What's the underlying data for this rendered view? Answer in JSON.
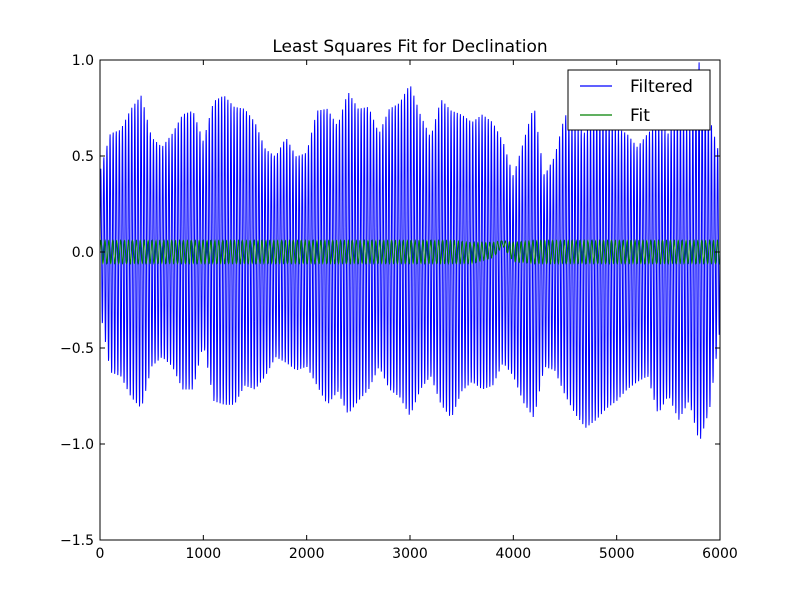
{
  "chart_data": {
    "type": "line",
    "title": "Least Squares Fit for Declination",
    "xlabel": "",
    "ylabel": "",
    "xlim": [
      0,
      6000
    ],
    "ylim": [
      -1.5,
      1.0
    ],
    "x_ticks": [
      0,
      1000,
      2000,
      3000,
      4000,
      5000,
      6000
    ],
    "x_tick_labels": [
      "0",
      "1000",
      "2000",
      "3000",
      "4000",
      "5000",
      "6000"
    ],
    "y_ticks": [
      -1.5,
      -1.0,
      -0.5,
      0.0,
      0.5,
      1.0
    ],
    "y_tick_labels": [
      "−1.5",
      "−1.0",
      "−0.5",
      "0.0",
      "0.5",
      "1.0"
    ],
    "grid": false,
    "legend_position": "top-right",
    "series": [
      {
        "name": "Filtered",
        "color": "#0000ff",
        "x": [
          0,
          100,
          200,
          300,
          400,
          500,
          600,
          700,
          800,
          900,
          1000,
          1100,
          1200,
          1300,
          1400,
          1500,
          1600,
          1700,
          1800,
          1900,
          2000,
          2100,
          2200,
          2300,
          2400,
          2500,
          2600,
          2700,
          2800,
          2900,
          3000,
          3100,
          3200,
          3300,
          3400,
          3500,
          3600,
          3700,
          3800,
          3900,
          4000,
          4100,
          4200,
          4300,
          4400,
          4500,
          4600,
          4700,
          4800,
          4900,
          5000,
          5100,
          5200,
          5300,
          5400,
          5500,
          5600,
          5700,
          5800,
          5900,
          6000
        ],
        "envelope_upper": [
          0.42,
          0.62,
          0.64,
          0.75,
          0.82,
          0.6,
          0.55,
          0.62,
          0.72,
          0.74,
          0.58,
          0.79,
          0.82,
          0.76,
          0.75,
          0.68,
          0.54,
          0.5,
          0.6,
          0.5,
          0.52,
          0.74,
          0.75,
          0.66,
          0.84,
          0.75,
          0.76,
          0.62,
          0.75,
          0.78,
          0.88,
          0.72,
          0.6,
          0.8,
          0.74,
          0.72,
          0.68,
          0.72,
          0.68,
          0.58,
          0.4,
          0.58,
          0.77,
          0.4,
          0.5,
          0.72,
          0.67,
          0.62,
          0.75,
          0.72,
          0.65,
          0.62,
          0.55,
          0.62,
          0.68,
          0.62,
          0.75,
          0.65,
          1.0,
          0.7,
          0.5
        ],
        "envelope_lower": [
          -0.3,
          -0.63,
          -0.65,
          -0.76,
          -0.82,
          -0.6,
          -0.55,
          -0.6,
          -0.72,
          -0.72,
          -0.48,
          -0.78,
          -0.8,
          -0.8,
          -0.7,
          -0.72,
          -0.65,
          -0.55,
          -0.58,
          -0.62,
          -0.6,
          -0.7,
          -0.8,
          -0.73,
          -0.85,
          -0.78,
          -0.72,
          -0.6,
          -0.72,
          -0.76,
          -0.86,
          -0.72,
          -0.65,
          -0.8,
          -0.87,
          -0.73,
          -0.68,
          -0.72,
          -0.7,
          -0.58,
          -0.65,
          -0.79,
          -0.87,
          -0.6,
          -0.62,
          -0.75,
          -0.85,
          -0.92,
          -0.88,
          -0.82,
          -0.78,
          -0.72,
          -0.68,
          -0.65,
          -0.85,
          -0.75,
          -0.88,
          -0.78,
          -1.0,
          -0.82,
          -0.4
        ]
      },
      {
        "name": "Fit",
        "color": "#008000",
        "x": [
          0,
          500,
          1000,
          1500,
          2000,
          2500,
          3000,
          3200,
          3400,
          3600,
          3800,
          3900,
          4000,
          4200,
          4400,
          4600,
          5000,
          5500,
          6000
        ],
        "envelope_upper": [
          0.06,
          0.06,
          0.06,
          0.06,
          0.06,
          0.06,
          0.06,
          0.06,
          0.06,
          0.05,
          0.05,
          0.06,
          0.05,
          0.06,
          0.06,
          0.06,
          0.06,
          0.06,
          0.06
        ],
        "envelope_lower": [
          -0.06,
          -0.06,
          -0.06,
          -0.06,
          -0.06,
          -0.06,
          -0.06,
          -0.06,
          -0.06,
          -0.06,
          -0.03,
          0.03,
          -0.05,
          -0.06,
          -0.06,
          -0.06,
          -0.06,
          -0.06,
          -0.06
        ]
      }
    ]
  }
}
